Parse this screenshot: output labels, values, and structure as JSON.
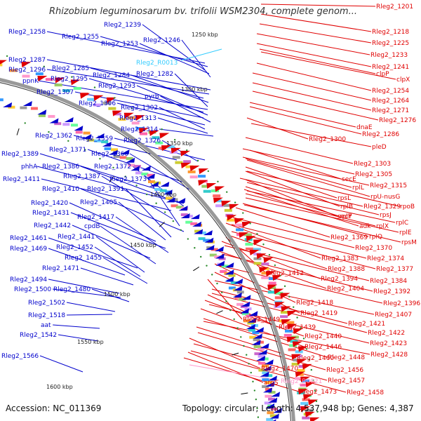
{
  "title": "Rhizobium leguminosarum bv. trifolii WSM2304, complete genom...",
  "footer": {
    "accession": "Accession: NC_011369",
    "summary": "Topology: circular; Length: 4,537,948 bp; Genes: 4,387"
  },
  "colors": {
    "forward": "#0000cc",
    "reverse": "#e00000",
    "rna": "#33ccff",
    "pseudo_rna": "#ff99cc",
    "backbone": "#999999",
    "ticks": "#000000"
  },
  "ruler": {
    "unit": "kbp",
    "ticks": [
      {
        "pos_kbp": 1250,
        "label": "1250 kbp"
      },
      {
        "pos_kbp": 1300,
        "label": "1300 kbp"
      },
      {
        "pos_kbp": 1350,
        "label": "1350 kbp"
      },
      {
        "pos_kbp": 1400,
        "label": "1400 kbp"
      },
      {
        "pos_kbp": 1450,
        "label": "1450 kbp"
      },
      {
        "pos_kbp": 1500,
        "label": "1500 kbp"
      },
      {
        "pos_kbp": 1550,
        "label": "1550 kbp"
      },
      {
        "pos_kbp": 1600,
        "label": "1600 kbp"
      }
    ]
  },
  "labels_forward": [
    "Rleg2_1258",
    "Rleg2_1255",
    "Rleg2_1239",
    "Rleg2_1253",
    "Rleg2_1246",
    "Rleg2_1287",
    "Rleg2_1296",
    "Rleg2_1285",
    "Rleg2_1284",
    "Rleg2_1282",
    "ppnK",
    "Rleg2_1295",
    "Rleg2_1293",
    "Rleg2_1307",
    "pyrB",
    "Rleg2_1306",
    "Rleg2_1302",
    "Rleg2_1313",
    "Rleg2_1314",
    "Rleg2_1362",
    "Rleg2_1359",
    "Rleg2_1326",
    "Rleg2_1371",
    "Rleg2_1389",
    "Rleg2_1360",
    "phhA",
    "Rleg2_1386",
    "Rleg2_1372",
    "Rleg2_1411",
    "Rleg2_1387",
    "Rleg2_1373",
    "Rleg2_1410",
    "Rleg2_1391",
    "Rleg2_1420",
    "Rleg2_1405",
    "Rleg2_1431",
    "Rleg2_1417",
    "Rleg2_1442",
    "cpdB",
    "Rleg2_1461",
    "Rleg2_1441",
    "Rleg2_1469",
    "Rleg2_1452",
    "Rleg2_1455",
    "Rleg2_1471",
    "Rleg2_1494",
    "Rleg2_1500",
    "Rleg2_1480",
    "Rleg2_1502",
    "Rleg2_1518",
    "aat",
    "Rleg2_1542",
    "Rleg2_1566"
  ],
  "labels_reverse": [
    "Rleg2_1201",
    "Rleg2_1218",
    "Rleg2_1225",
    "Rleg2_1233",
    "Rleg2_1241",
    "clpP",
    "clpX",
    "Rleg2_1254",
    "Rleg2_1264",
    "Rleg2_1271",
    "Rleg2_1276",
    "dnaE",
    "Rleg2_1286",
    "Rleg2_1300",
    "pleD",
    "Rleg2_1303",
    "Rleg2_1305",
    "secE",
    "Rleg2_1315",
    "rplL",
    "rpU-nusG",
    "rpsL",
    "rplB",
    "Rleg2_1329",
    "rpoB",
    "secY",
    "rpsJ",
    "rplP",
    "adk",
    "rplC",
    "rplX",
    "rplE",
    "Rleg2_1369",
    "rplQ",
    "rpsM",
    "Rleg2_1370",
    "Rleg2_1383",
    "Rleg2_1374",
    "Rleg2_1412",
    "Rleg2_1388",
    "Rleg2_1377",
    "Rleg2_1394",
    "Rleg2_1384",
    "Rleg2_1404",
    "Rleg2_1392",
    "Rleg2_1418",
    "Rleg2_1396",
    "Rleg2_1419",
    "Rleg2_1449",
    "Rleg2_1407",
    "Rleg2_1421",
    "Rleg2_1439",
    "Rleg2_1422",
    "Rleg2_1440",
    "Rleg2_1423",
    "Rleg2_1446",
    "Rleg2_1448",
    "Rleg2_1428",
    "Rleg2_1460",
    "Rleg2_1456",
    "Rleg2_1470",
    "Rleg2_1457",
    "argS",
    "Rleg2_1473",
    "Rleg2_1458"
  ],
  "labels_rna": [
    "Rleg2_R0013"
  ],
  "labels_pseudo": [
    "Rleg2_R0021"
  ]
}
